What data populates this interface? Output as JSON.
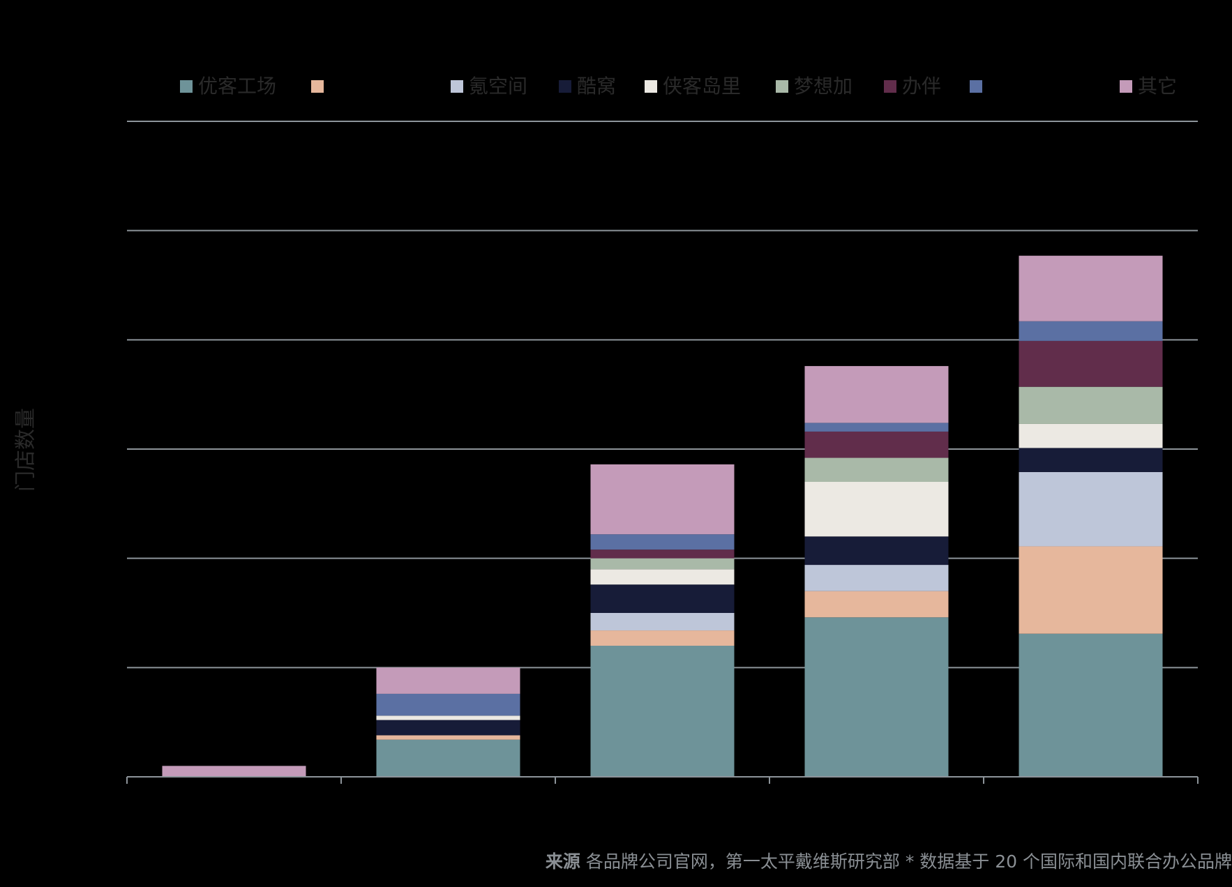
{
  "chart_data": {
    "type": "bar",
    "stacked": true,
    "title": "",
    "xlabel": "",
    "ylabel": "门店数量",
    "categories": [
      "",
      "",
      "",
      "",
      ""
    ],
    "ylim": [
      0,
      600
    ],
    "yticks": [
      0,
      100,
      200,
      300,
      400,
      500,
      600
    ],
    "grid": true,
    "legend_position": "top",
    "series": [
      {
        "name": "优客工场",
        "color": "#6e9399",
        "values": [
          0,
          34,
          120,
          146,
          131
        ]
      },
      {
        "name": "",
        "color": "#e6b79c",
        "values": [
          0,
          4,
          14,
          24,
          80
        ]
      },
      {
        "name": "氪空间",
        "color": "#bec6d9",
        "values": [
          0,
          0,
          16,
          24,
          68
        ]
      },
      {
        "name": "酷窝",
        "color": "#171c38",
        "values": [
          0,
          14,
          26,
          26,
          22
        ]
      },
      {
        "name": "侠客岛里",
        "color": "#ece9e3",
        "values": [
          0,
          4,
          14,
          50,
          22
        ]
      },
      {
        "name": "梦想加",
        "color": "#a9b9a8",
        "values": [
          0,
          0,
          10,
          22,
          34
        ]
      },
      {
        "name": "办伴",
        "color": "#612d4b",
        "values": [
          0,
          0,
          8,
          24,
          42
        ]
      },
      {
        "name": "",
        "color": "#5b70a3",
        "values": [
          0,
          20,
          14,
          8,
          18
        ]
      },
      {
        "name": "其它",
        "color": "#c49bb9",
        "values": [
          10,
          24,
          64,
          52,
          60
        ]
      }
    ]
  },
  "source": {
    "label": "来源",
    "text": "各品牌公司官网，第一太平戴维斯研究部 * 数据基于 20 个国际和国内联合办公品牌"
  },
  "colors": {
    "background": "#000000",
    "grid": "#8d949a",
    "axis": "#8d949a",
    "text": "#2a2a2a",
    "source_text": "#8a8f94"
  }
}
